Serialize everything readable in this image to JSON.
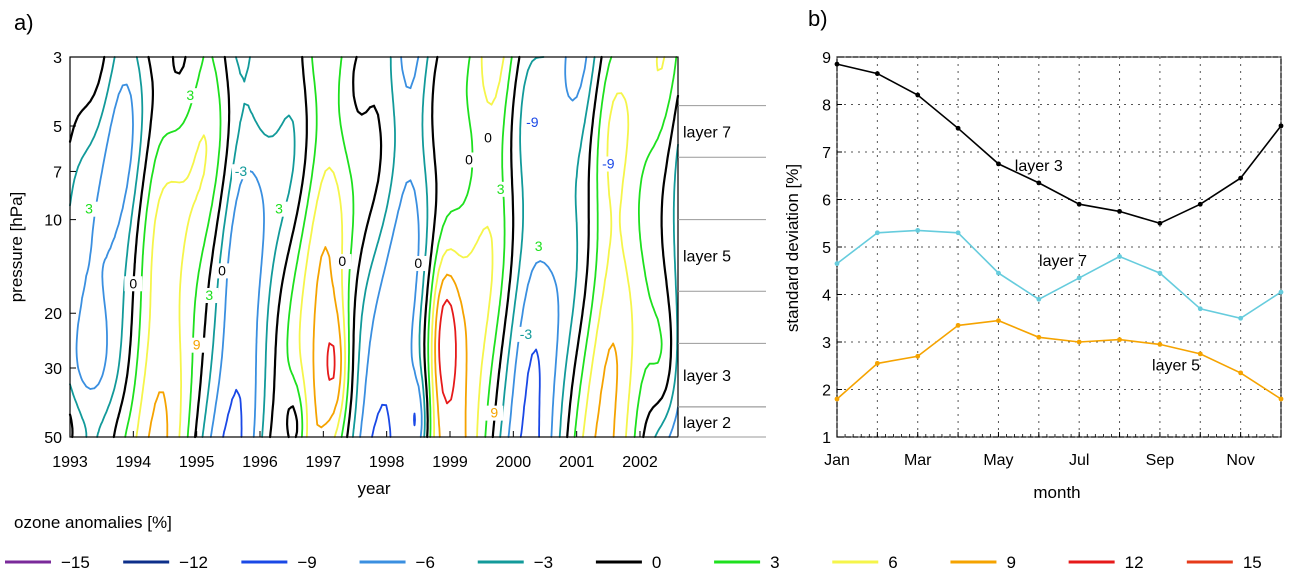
{
  "chart_data": [
    {
      "panel_label": "a)",
      "type": "contour",
      "xlabel": "year",
      "ylabel": "pressure [hPa]",
      "x_ticks": [
        "1993",
        "1994",
        "1995",
        "1996",
        "1997",
        "1998",
        "1999",
        "2000",
        "2001",
        "2002"
      ],
      "y_ticks": [
        "3",
        "5",
        "7",
        "10",
        "20",
        "30",
        "50"
      ],
      "xlim": [
        1993,
        2002.6
      ],
      "ylim": [
        3,
        50
      ],
      "y_scale": "log (inverted)",
      "contour_levels": [
        -15,
        -12,
        -9,
        -6,
        -3,
        0,
        3,
        6,
        9,
        12,
        15
      ],
      "contour_labels": [
        {
          "text": "0",
          "x": 1994.0,
          "y": 16.5
        },
        {
          "text": "0",
          "x": 1995.4,
          "y": 15
        },
        {
          "text": "0",
          "x": 1997.3,
          "y": 14
        },
        {
          "text": "0",
          "x": 1998.5,
          "y": 14.2
        },
        {
          "text": "0",
          "x": 1999.3,
          "y": 6.6
        },
        {
          "text": "0",
          "x": 1999.6,
          "y": 5.6
        },
        {
          "text": "3",
          "x": 1993.3,
          "y": 9.5
        },
        {
          "text": "3",
          "x": 1995.2,
          "y": 18
        },
        {
          "text": "3",
          "x": 1996.3,
          "y": 9.5
        },
        {
          "text": "3",
          "x": 1999.8,
          "y": 8.2
        },
        {
          "text": "3",
          "x": 2000.4,
          "y": 12.5
        },
        {
          "text": "3",
          "x": 1994.9,
          "y": 4.1
        },
        {
          "text": "-3",
          "x": 1995.7,
          "y": 7.2
        },
        {
          "text": "-3",
          "x": 2000.2,
          "y": 24
        },
        {
          "text": "-9",
          "x": 2000.3,
          "y": 5.0
        },
        {
          "text": "-9",
          "x": 2001.5,
          "y": 6.8
        },
        {
          "text": "9",
          "x": 1995.0,
          "y": 26
        },
        {
          "text": "9",
          "x": 1999.7,
          "y": 43
        }
      ],
      "layers": [
        {
          "name": "layer 7",
          "p_top": 4.3,
          "p_bottom": 6.3
        },
        {
          "name": "layer 5",
          "p_top": 10,
          "p_bottom": 17
        },
        {
          "name": "layer 3",
          "p_top": 25,
          "p_bottom": 40
        },
        {
          "name": "layer 2",
          "p_top": 40,
          "p_bottom": 50
        }
      ]
    },
    {
      "panel_label": "b)",
      "type": "line",
      "xlabel": "month",
      "ylabel": "standard deviation [%]",
      "x": [
        1,
        2,
        3,
        4,
        5,
        6,
        7,
        8,
        9,
        10,
        11,
        12
      ],
      "x_ticks": [
        {
          "value": 1,
          "label": "Jan"
        },
        {
          "value": 3,
          "label": "Mar"
        },
        {
          "value": 5,
          "label": "May"
        },
        {
          "value": 7,
          "label": "Jul"
        },
        {
          "value": 9,
          "label": "Sep"
        },
        {
          "value": 11,
          "label": "Nov"
        }
      ],
      "xlim": [
        1,
        12
      ],
      "ylim": [
        1,
        9
      ],
      "y_ticks": [
        "1",
        "2",
        "3",
        "4",
        "5",
        "6",
        "7",
        "8",
        "9"
      ],
      "grid": true,
      "series": [
        {
          "name": "layer 3",
          "color": "#000000",
          "values": [
            8.85,
            8.65,
            8.2,
            7.5,
            6.75,
            6.35,
            5.9,
            5.75,
            5.5,
            5.9,
            6.45,
            7.55
          ],
          "label_at": [
            6.0,
            6.6
          ]
        },
        {
          "name": "layer 7",
          "color": "#66ccdd",
          "values": [
            4.65,
            5.3,
            5.35,
            5.3,
            4.45,
            3.9,
            4.35,
            4.8,
            4.45,
            3.7,
            3.5,
            4.05
          ],
          "label_at": [
            6.6,
            4.6
          ]
        },
        {
          "name": "layer 5",
          "color": "#f5a300",
          "values": [
            1.8,
            2.55,
            2.7,
            3.35,
            3.45,
            3.1,
            3.0,
            3.05,
            2.95,
            2.75,
            2.35,
            1.8
          ],
          "label_at": [
            9.4,
            2.4
          ]
        }
      ]
    }
  ],
  "legend": {
    "title": "ozone anomalies [%]",
    "entries": [
      {
        "label": "−15",
        "color": "#7a2a9a"
      },
      {
        "label": "−12",
        "color": "#0d2f8a"
      },
      {
        "label": "−9",
        "color": "#1a48e6"
      },
      {
        "label": "−6",
        "color": "#3a8fe0"
      },
      {
        "label": "−3",
        "color": "#129a9a"
      },
      {
        "label": "0",
        "color": "#000000"
      },
      {
        "label": "3",
        "color": "#1ee01e"
      },
      {
        "label": "6",
        "color": "#f5f54a"
      },
      {
        "label": "9",
        "color": "#f5a300"
      },
      {
        "label": "12",
        "color": "#e61a1a"
      },
      {
        "label": "15",
        "color": "#e63a1a"
      }
    ]
  }
}
